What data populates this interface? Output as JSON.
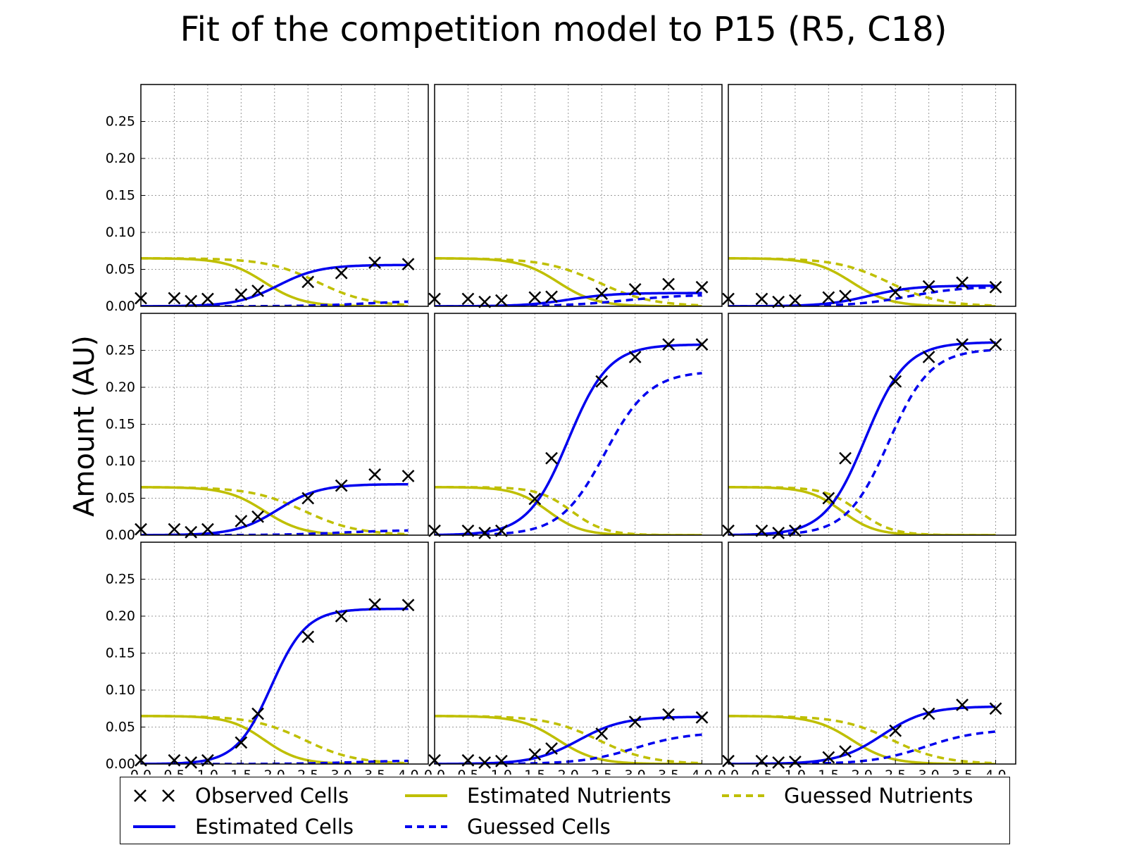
{
  "chart_data": {
    "type": "line",
    "title": "Fit of the competition model to P15 (R5, C18)",
    "ylabel": "Amount (AU)",
    "xlabel": "",
    "grid": true,
    "xlim": [
      0,
      4.0
    ],
    "ylim": [
      0,
      0.3
    ],
    "xticks": [
      "0.0",
      "0.5",
      "1.0",
      "1.5",
      "2.0",
      "2.5",
      "3.0",
      "3.5",
      "4.0"
    ],
    "yticks": [
      "0.00",
      "0.05",
      "0.10",
      "0.15",
      "0.20",
      "0.25"
    ],
    "colors": {
      "cells": "#0000ee",
      "nutrients": "#bfbf00",
      "observed": "#000000",
      "grid": "#999999"
    },
    "legend_position": "bottom",
    "legend": [
      {
        "key": "observed",
        "label": "Observed Cells",
        "style": "x-marker",
        "color": "#000000"
      },
      {
        "key": "est_nut",
        "label": "Estimated Nutrients",
        "style": "solid",
        "color": "#bfbf00"
      },
      {
        "key": "guess_nut",
        "label": "Guessed Nutrients",
        "style": "dashed",
        "color": "#bfbf00"
      },
      {
        "key": "est_cells",
        "label": "Estimated Cells",
        "style": "solid",
        "color": "#0000ee"
      },
      {
        "key": "guess_cells",
        "label": "Guessed Cells",
        "style": "dashed",
        "color": "#0000ee"
      }
    ],
    "x_observed": [
      0.0,
      0.5,
      0.75,
      1.0,
      1.5,
      1.75,
      2.5,
      3.0,
      3.5,
      4.0
    ],
    "panels": [
      {
        "observed": [
          0.011,
          0.011,
          0.007,
          0.01,
          0.016,
          0.021,
          0.033,
          0.045,
          0.059,
          0.057
        ],
        "estimated_cells": {
          "max": 0.056,
          "mid": 2.05,
          "rate": 3.2
        },
        "guessed_cells": {
          "max": 0.008,
          "mid": 3.4,
          "rate": 2.2
        },
        "estimated_nutrients": {
          "start": 0.065,
          "mid": 1.85,
          "rate": 3.5
        },
        "guessed_nutrients": {
          "start": 0.065,
          "mid": 2.65,
          "rate": 2.6
        }
      },
      {
        "observed": [
          0.01,
          0.01,
          0.006,
          0.008,
          0.012,
          0.013,
          0.017,
          0.023,
          0.03,
          0.026
        ],
        "estimated_cells": {
          "max": 0.018,
          "mid": 2.0,
          "rate": 3.0
        },
        "guessed_cells": {
          "max": 0.016,
          "mid": 2.85,
          "rate": 2.2
        },
        "estimated_nutrients": {
          "start": 0.065,
          "mid": 1.85,
          "rate": 3.5
        },
        "guessed_nutrients": {
          "start": 0.065,
          "mid": 2.45,
          "rate": 2.5
        }
      },
      {
        "observed": [
          0.01,
          0.01,
          0.006,
          0.008,
          0.012,
          0.014,
          0.019,
          0.027,
          0.032,
          0.026
        ],
        "estimated_cells": {
          "max": 0.028,
          "mid": 2.1,
          "rate": 3.0
        },
        "guessed_cells": {
          "max": 0.027,
          "mid": 2.7,
          "rate": 2.4
        },
        "estimated_nutrients": {
          "start": 0.065,
          "mid": 1.85,
          "rate": 3.5
        },
        "guessed_nutrients": {
          "start": 0.065,
          "mid": 2.4,
          "rate": 2.6
        }
      },
      {
        "observed": [
          0.008,
          0.008,
          0.004,
          0.008,
          0.019,
          0.025,
          0.05,
          0.067,
          0.082,
          0.08
        ],
        "estimated_cells": {
          "max": 0.069,
          "mid": 2.05,
          "rate": 3.2
        },
        "guessed_cells": {
          "max": 0.007,
          "mid": 3.0,
          "rate": 2.2
        },
        "estimated_nutrients": {
          "start": 0.065,
          "mid": 1.85,
          "rate": 3.5
        },
        "guessed_nutrients": {
          "start": 0.065,
          "mid": 2.45,
          "rate": 2.5
        }
      },
      {
        "observed": [
          0.006,
          0.006,
          0.003,
          0.006,
          0.049,
          0.104,
          0.208,
          0.241,
          0.258,
          0.258
        ],
        "estimated_cells": {
          "max": 0.258,
          "mid": 2.0,
          "rate": 3.3
        },
        "guessed_cells": {
          "max": 0.222,
          "mid": 2.55,
          "rate": 3.0
        },
        "estimated_nutrients": {
          "start": 0.065,
          "mid": 1.7,
          "rate": 4.0
        },
        "guessed_nutrients": {
          "start": 0.065,
          "mid": 2.05,
          "rate": 4.0
        }
      },
      {
        "observed": [
          0.006,
          0.006,
          0.003,
          0.006,
          0.05,
          0.104,
          0.208,
          0.241,
          0.258,
          0.258
        ],
        "estimated_cells": {
          "max": 0.261,
          "mid": 2.05,
          "rate": 3.3
        },
        "guessed_cells": {
          "max": 0.252,
          "mid": 2.4,
          "rate": 3.2
        },
        "estimated_nutrients": {
          "start": 0.065,
          "mid": 1.7,
          "rate": 4.0
        },
        "guessed_nutrients": {
          "start": 0.065,
          "mid": 1.95,
          "rate": 4.0
        }
      },
      {
        "observed": [
          0.005,
          0.005,
          0.002,
          0.005,
          0.029,
          0.068,
          0.172,
          0.2,
          0.216,
          0.215
        ],
        "estimated_cells": {
          "max": 0.21,
          "mid": 1.95,
          "rate": 3.8
        },
        "guessed_cells": {
          "max": 0.005,
          "mid": 3.2,
          "rate": 2.2
        },
        "estimated_nutrients": {
          "start": 0.065,
          "mid": 1.85,
          "rate": 3.8
        },
        "guessed_nutrients": {
          "start": 0.065,
          "mid": 2.45,
          "rate": 2.6
        }
      },
      {
        "observed": [
          0.005,
          0.005,
          0.002,
          0.004,
          0.013,
          0.021,
          0.041,
          0.057,
          0.067,
          0.063
        ],
        "estimated_cells": {
          "max": 0.064,
          "mid": 2.15,
          "rate": 3.0
        },
        "guessed_cells": {
          "max": 0.043,
          "mid": 3.0,
          "rate": 2.5
        },
        "estimated_nutrients": {
          "start": 0.065,
          "mid": 1.85,
          "rate": 3.5
        },
        "guessed_nutrients": {
          "start": 0.065,
          "mid": 2.45,
          "rate": 2.6
        }
      },
      {
        "observed": [
          0.004,
          0.004,
          0.002,
          0.003,
          0.009,
          0.017,
          0.045,
          0.068,
          0.08,
          0.075
        ],
        "estimated_cells": {
          "max": 0.078,
          "mid": 2.3,
          "rate": 3.0
        },
        "guessed_cells": {
          "max": 0.047,
          "mid": 2.95,
          "rate": 2.5
        },
        "estimated_nutrients": {
          "start": 0.065,
          "mid": 1.85,
          "rate": 3.5
        },
        "guessed_nutrients": {
          "start": 0.065,
          "mid": 2.45,
          "rate": 2.6
        }
      }
    ]
  }
}
